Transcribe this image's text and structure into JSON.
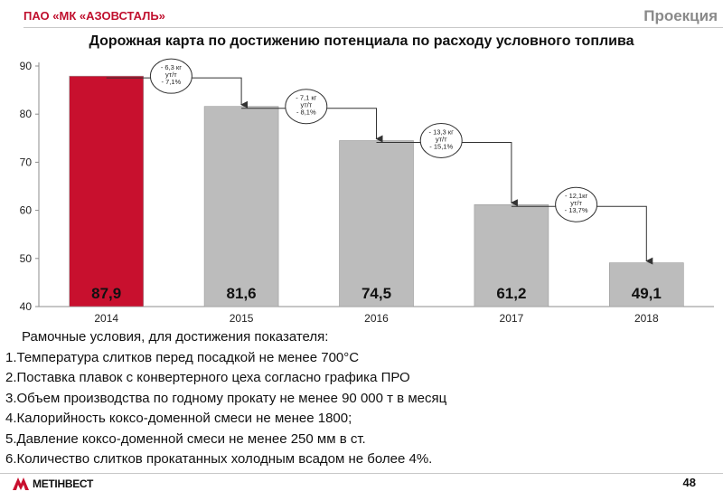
{
  "header": {
    "company": "ПАО «МК «АЗОВСТАЛЬ»",
    "corner": "Проекция"
  },
  "title": "Дорожная карта по достижению потенциала по расходу условного топлива",
  "colors": {
    "highlight_bar": "#c8102e",
    "bar": "#bcbcbc",
    "arrow": "#333333"
  },
  "chart_data": {
    "type": "bar",
    "title": "Дорожная карта по достижению потенциала по расходу условного топлива",
    "categories": [
      "2014",
      "2015",
      "2016",
      "2017",
      "2018"
    ],
    "values": [
      87.9,
      81.6,
      74.5,
      61.2,
      49.1
    ],
    "data_labels": [
      "87,9",
      "81,6",
      "74,5",
      "61,2",
      "49,1"
    ],
    "highlight_index": 0,
    "ylim": [
      40,
      90
    ],
    "yticks": [
      "40",
      "50",
      "60",
      "70",
      "80",
      "90"
    ],
    "grid": false,
    "annotations": [
      {
        "from": 0,
        "to": 1,
        "lines": [
          "- 6,3 кг",
          "ут/т",
          "- 7,1%"
        ]
      },
      {
        "from": 1,
        "to": 2,
        "lines": [
          "- 7,1 кг",
          "ут/т",
          "- 8,1%"
        ]
      },
      {
        "from": 2,
        "to": 3,
        "lines": [
          "- 13,3 кг",
          "ут/т",
          "- 15,1%"
        ]
      },
      {
        "from": 3,
        "to": 4,
        "lines": [
          "- 12,1кг",
          "ут/т",
          "- 13,7%"
        ]
      }
    ]
  },
  "conditions": {
    "heading": "Рамочные условия, для достижения показателя:",
    "items": [
      "1.Температура слитков перед посадкой не менее 700°С",
      "2.Поставка плавок с конвертерного цеха согласно графика ПРО",
      "3.Объем производства по годному прокату не менее 90 000 т в месяц",
      "4.Калорийность коксо-доменной смеси не менее 1800;",
      "5.Давление коксо-доменной смеси не менее 250 мм в ст.",
      "6.Количество слитков прокатанных холодным всадом не более 4%."
    ]
  },
  "footer": {
    "logo": "МЕТІНВЕСТ",
    "page": "48"
  }
}
